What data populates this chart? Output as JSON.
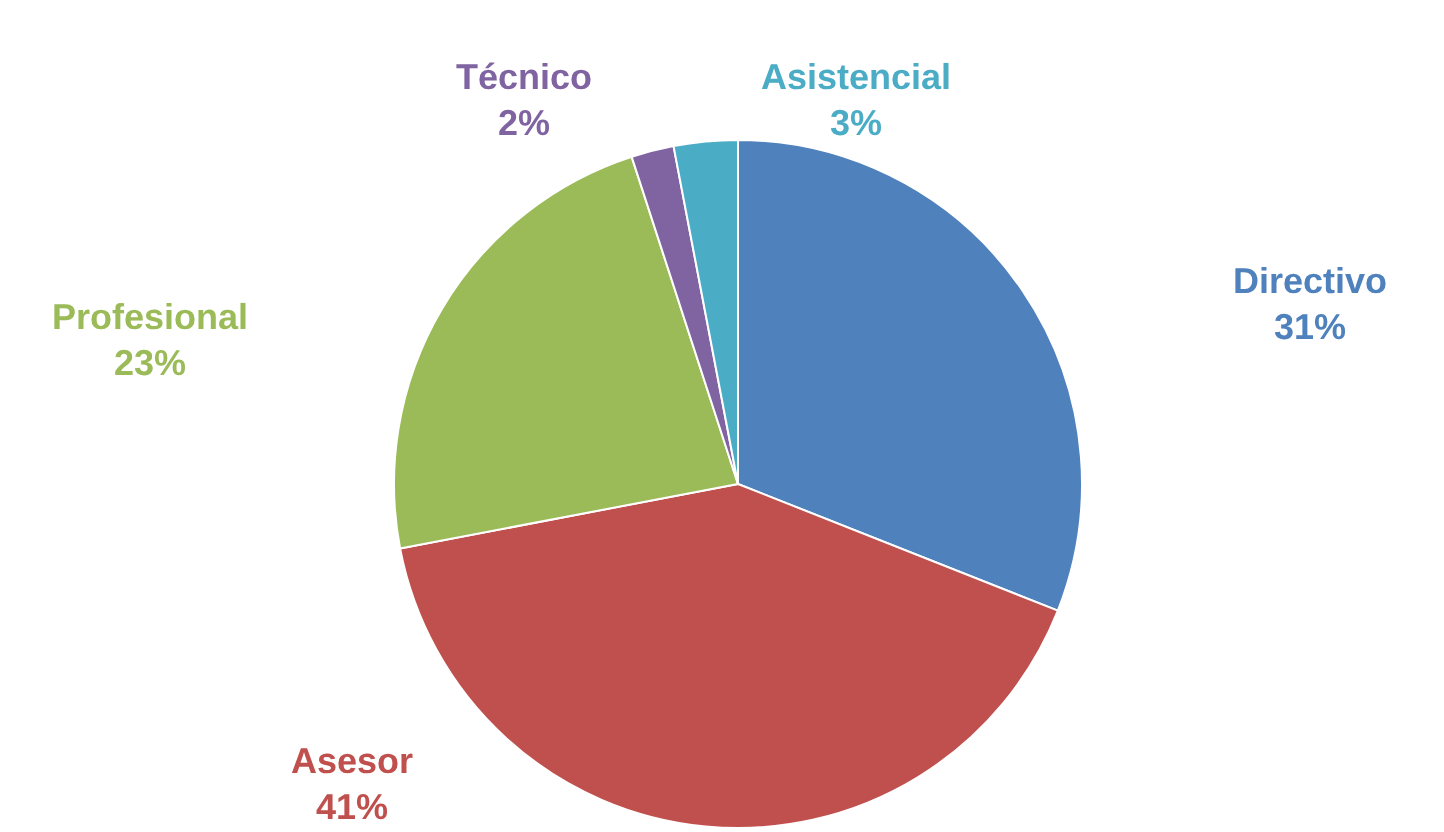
{
  "chart_data": {
    "type": "pie",
    "categories": [
      "Directivo",
      "Asesor",
      "Profesional",
      "Técnico",
      "Asistencial"
    ],
    "values": [
      31,
      41,
      23,
      2,
      3
    ],
    "colors": [
      "#4f81bd",
      "#c0504d",
      "#9bbb59",
      "#8064a2",
      "#4bacc6"
    ],
    "value_labels": [
      "31%",
      "41%",
      "23%",
      "2%",
      "3%"
    ],
    "legend": false
  }
}
